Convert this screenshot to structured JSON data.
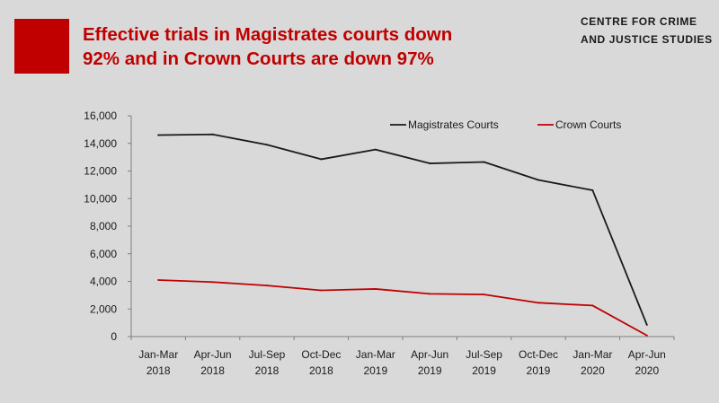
{
  "header": {
    "title_line1": "Effective trials in Magistrates courts down",
    "title_line2": "92% and in Crown Courts are down 97%",
    "brand_line1": "CENTRE FOR CRIME",
    "brand_line2": "AND JUSTICE STUDIES"
  },
  "colors": {
    "accent": "#c00000",
    "magistrates": "#1a1a1a",
    "crown": "#c00000"
  },
  "chart_data": {
    "type": "line",
    "title": "Effective trials in Magistrates courts down 92% and in Crown Courts are down 97%",
    "xlabel": "",
    "ylabel": "",
    "categories": [
      [
        "Jan-Mar",
        "2018"
      ],
      [
        "Apr-Jun",
        "2018"
      ],
      [
        "Jul-Sep",
        "2018"
      ],
      [
        "Oct-Dec",
        "2018"
      ],
      [
        "Jan-Mar",
        "2019"
      ],
      [
        "Apr-Jun",
        "2019"
      ],
      [
        "Jul-Sep",
        "2019"
      ],
      [
        "Oct-Dec",
        "2019"
      ],
      [
        "Jan-Mar",
        "2020"
      ],
      [
        "Apr-Jun",
        "2020"
      ]
    ],
    "series": [
      {
        "name": "Magistrates Courts",
        "color": "#1a1a1a",
        "values": [
          14600,
          14650,
          13900,
          12850,
          13550,
          12550,
          12650,
          11350,
          10600,
          850
        ]
      },
      {
        "name": "Crown Courts",
        "color": "#c00000",
        "values": [
          4100,
          3950,
          3700,
          3350,
          3450,
          3100,
          3050,
          2450,
          2250,
          80
        ]
      }
    ],
    "ylim": [
      0,
      16000
    ],
    "yticks": [
      "0",
      "2,000",
      "4,000",
      "6,000",
      "8,000",
      "10,000",
      "12,000",
      "14,000",
      "16,000"
    ],
    "grid": false,
    "legend_position": "top-right"
  }
}
